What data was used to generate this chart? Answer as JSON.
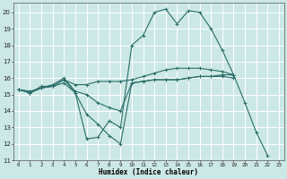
{
  "title": "",
  "xlabel": "Humidex (Indice chaleur)",
  "ylabel": "",
  "bg_color": "#cce8e6",
  "grid_color": "#ffffff",
  "line_color": "#2a6e68",
  "xlim": [
    -0.5,
    23.5
  ],
  "ylim": [
    11,
    20.6
  ],
  "yticks": [
    11,
    12,
    13,
    14,
    15,
    16,
    17,
    18,
    19,
    20
  ],
  "xticks": [
    0,
    1,
    2,
    3,
    4,
    5,
    6,
    7,
    8,
    9,
    10,
    11,
    12,
    13,
    14,
    15,
    16,
    17,
    18,
    19,
    20,
    21,
    22,
    23
  ],
  "series": [
    {
      "x": [
        0,
        1,
        2,
        3,
        4,
        5,
        6,
        7,
        8,
        9,
        10,
        11,
        12,
        13,
        14,
        15,
        16,
        17,
        18,
        19,
        20,
        21,
        22
      ],
      "y": [
        15.3,
        15.1,
        15.5,
        15.5,
        15.9,
        15.1,
        12.3,
        12.4,
        13.4,
        13.0,
        18.0,
        18.6,
        20.0,
        20.2,
        19.3,
        20.1,
        20.0,
        19.0,
        17.7,
        16.2,
        14.5,
        12.7,
        11.3
      ]
    },
    {
      "x": [
        0,
        1,
        2,
        3,
        4,
        5,
        6,
        7,
        8,
        9,
        10,
        11,
        12,
        13,
        14,
        15,
        16,
        17,
        18,
        19
      ],
      "y": [
        15.3,
        15.1,
        15.4,
        15.5,
        15.9,
        15.6,
        15.6,
        15.8,
        15.8,
        15.8,
        15.9,
        16.1,
        16.3,
        16.5,
        16.6,
        16.6,
        16.6,
        16.5,
        16.4,
        16.2
      ]
    },
    {
      "x": [
        0,
        1,
        2,
        3,
        4,
        5,
        6,
        7,
        8,
        9,
        10,
        11,
        12,
        13,
        14,
        15,
        16,
        17,
        18,
        19
      ],
      "y": [
        15.3,
        15.2,
        15.4,
        15.6,
        16.0,
        15.2,
        15.0,
        14.5,
        14.2,
        14.0,
        15.7,
        15.8,
        15.9,
        15.9,
        15.9,
        16.0,
        16.1,
        16.1,
        16.2,
        16.2
      ]
    },
    {
      "x": [
        0,
        1,
        2,
        3,
        4,
        5,
        6,
        7,
        8,
        9,
        10,
        11,
        12,
        13,
        14,
        15,
        16,
        17,
        18,
        19
      ],
      "y": [
        15.3,
        15.1,
        15.4,
        15.5,
        15.7,
        15.1,
        13.8,
        13.2,
        12.5,
        12.0,
        15.7,
        15.8,
        15.9,
        15.9,
        15.9,
        16.0,
        16.1,
        16.1,
        16.1,
        16.0
      ]
    }
  ]
}
